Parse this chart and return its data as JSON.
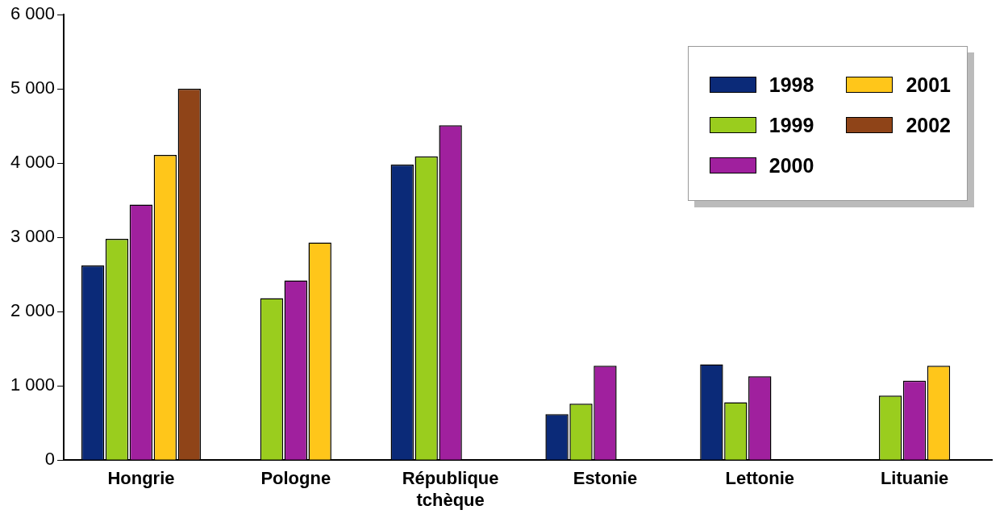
{
  "chart_data": {
    "type": "bar",
    "categories": [
      "Hongrie",
      "Pologne",
      "République tchèque",
      "Estonie",
      "Lettonie",
      "Lituanie"
    ],
    "series": [
      {
        "name": "1998",
        "color": "#0b2a78",
        "values": [
          2620,
          null,
          3980,
          620,
          1290,
          null
        ]
      },
      {
        "name": "1999",
        "color": "#9acd1e",
        "values": [
          2980,
          2180,
          4090,
          760,
          780,
          870
        ]
      },
      {
        "name": "2000",
        "color": "#a0209e",
        "values": [
          3440,
          2420,
          4510,
          1270,
          1130,
          1070
        ]
      },
      {
        "name": "2001",
        "color": "#ffc61a",
        "values": [
          4110,
          2930,
          null,
          null,
          null,
          1270
        ]
      },
      {
        "name": "2002",
        "color": "#8f4418",
        "values": [
          5000,
          null,
          null,
          null,
          null,
          null
        ]
      }
    ],
    "ylim": [
      0,
      6000
    ],
    "yticks": [
      {
        "value": 0,
        "label": "0"
      },
      {
        "value": 1000,
        "label": "1 000"
      },
      {
        "value": 2000,
        "label": "2 000"
      },
      {
        "value": 3000,
        "label": "3 000"
      },
      {
        "value": 4000,
        "label": "4 000"
      },
      {
        "value": 5000,
        "label": "5 000"
      },
      {
        "value": 6000,
        "label": "6 000"
      }
    ],
    "grid": false,
    "legend": "top right"
  }
}
